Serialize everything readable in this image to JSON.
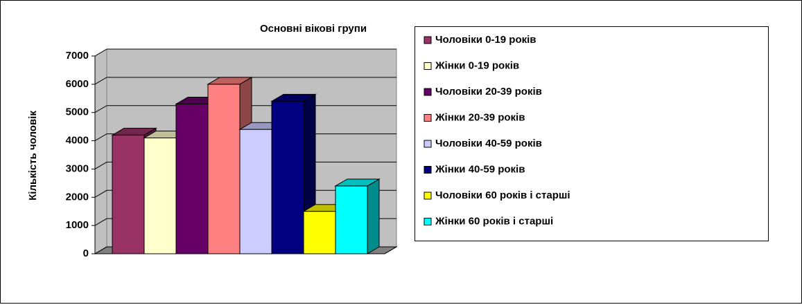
{
  "chart_data": {
    "type": "bar3d",
    "title": "Основні вікові групи",
    "y_label": "Кількість чоловік",
    "categories": [
      null
    ],
    "series": [
      {
        "name": "Чоловіки 0-19 років",
        "color": "#993366",
        "values": [
          4200
        ]
      },
      {
        "name": "Жінки 0-19 років",
        "color": "#ffffcc",
        "values": [
          4100
        ]
      },
      {
        "name": "Чоловіки 20-39 років",
        "color": "#660066",
        "values": [
          5300
        ]
      },
      {
        "name": "Жінки 20-39 років",
        "color": "#ff8080",
        "values": [
          6000
        ]
      },
      {
        "name": "Чоловіки 40-59 років",
        "color": "#ccccff",
        "values": [
          4400
        ]
      },
      {
        "name": "Жінки 40-59 років",
        "color": "#000080",
        "values": [
          5400
        ]
      },
      {
        "name": "Чоловіки 60 років і старші",
        "color": "#ffff00",
        "values": [
          1500
        ]
      },
      {
        "name": "Жінки 60 років і старші",
        "color": "#00ffff",
        "values": [
          2400
        ]
      }
    ],
    "ylim": [
      0,
      7000
    ],
    "yticks": [
      0,
      1000,
      2000,
      3000,
      4000,
      5000,
      6000,
      7000
    ],
    "grid": true,
    "legend": "right"
  }
}
